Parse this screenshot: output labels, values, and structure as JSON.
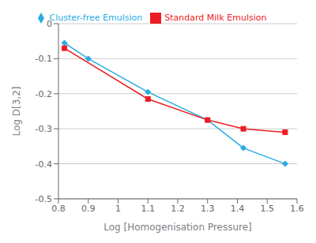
{
  "chart_data": {
    "type": "line",
    "xlabel": "Log [Homogenisation Pressure]",
    "ylabel": "Log D[3,2]",
    "series": [
      {
        "name": "Cluster-free Emulsion",
        "color": "#29ABE2",
        "marker": "diamond",
        "x": [
          0.82,
          0.9,
          1.1,
          1.3,
          1.42,
          1.56
        ],
        "values": [
          -0.055,
          -0.1,
          -0.195,
          -0.275,
          -0.355,
          -0.4
        ]
      },
      {
        "name": "Standard Milk Emulsion",
        "color": "#ED1C24",
        "marker": "square",
        "x": [
          0.82,
          1.1,
          1.3,
          1.42,
          1.56
        ],
        "values": [
          -0.07,
          -0.215,
          -0.275,
          -0.3,
          -0.31
        ]
      }
    ],
    "xlim": [
      0.8,
      1.6
    ],
    "ylim": [
      -0.5,
      0.0
    ],
    "xticks": [
      0.8,
      0.9,
      1.0,
      1.1,
      1.2,
      1.3,
      1.4,
      1.5,
      1.6
    ],
    "yticks": [
      -0.5,
      -0.4,
      -0.3,
      -0.2,
      -0.1,
      0.0
    ],
    "grid": "y",
    "legend": "top"
  }
}
